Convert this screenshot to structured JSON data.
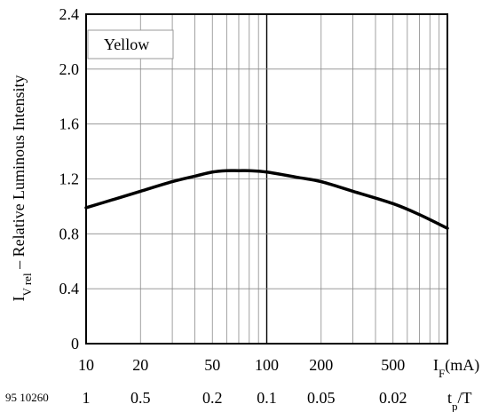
{
  "chart_data": {
    "type": "line",
    "figure_id": "95 10260",
    "legend": [
      "Yellow"
    ],
    "ylabel": {
      "main": "I",
      "sub": "V rel",
      "rest": " – Relative Luminous Intensity"
    },
    "x_scale": "log",
    "xlim": [
      10,
      1000
    ],
    "ylim": [
      0,
      2.4
    ],
    "grid": true,
    "y_ticks": [
      "0",
      "0.4",
      "0.8",
      "1.2",
      "1.6",
      "2.0",
      "2.4"
    ],
    "x_ticks": [
      {
        "value": 10,
        "label": "10"
      },
      {
        "value": 20,
        "label": "20"
      },
      {
        "value": 50,
        "label": "50"
      },
      {
        "value": 100,
        "label": "100"
      },
      {
        "value": 200,
        "label": "200"
      },
      {
        "value": 500,
        "label": "500"
      }
    ],
    "x_unit_label": {
      "main": "I",
      "sub": "F",
      "rest": "(mA)"
    },
    "duty_cycle_ticks": [
      {
        "value": 10,
        "label": "1"
      },
      {
        "value": 20,
        "label": "0.5"
      },
      {
        "value": 50,
        "label": "0.2"
      },
      {
        "value": 100,
        "label": "0.1"
      },
      {
        "value": 200,
        "label": "0.05"
      },
      {
        "value": 500,
        "label": "0.02"
      }
    ],
    "duty_unit_label": {
      "main": "t",
      "sub": "p",
      "rest": "/T"
    },
    "series": [
      {
        "name": "Yellow",
        "x": [
          10,
          15,
          20,
          30,
          40,
          50,
          60,
          70,
          80,
          100,
          150,
          200,
          300,
          500,
          700,
          1000
        ],
        "y": [
          0.99,
          1.06,
          1.11,
          1.18,
          1.22,
          1.25,
          1.26,
          1.26,
          1.26,
          1.25,
          1.21,
          1.18,
          1.11,
          1.02,
          0.94,
          0.84
        ]
      }
    ]
  }
}
